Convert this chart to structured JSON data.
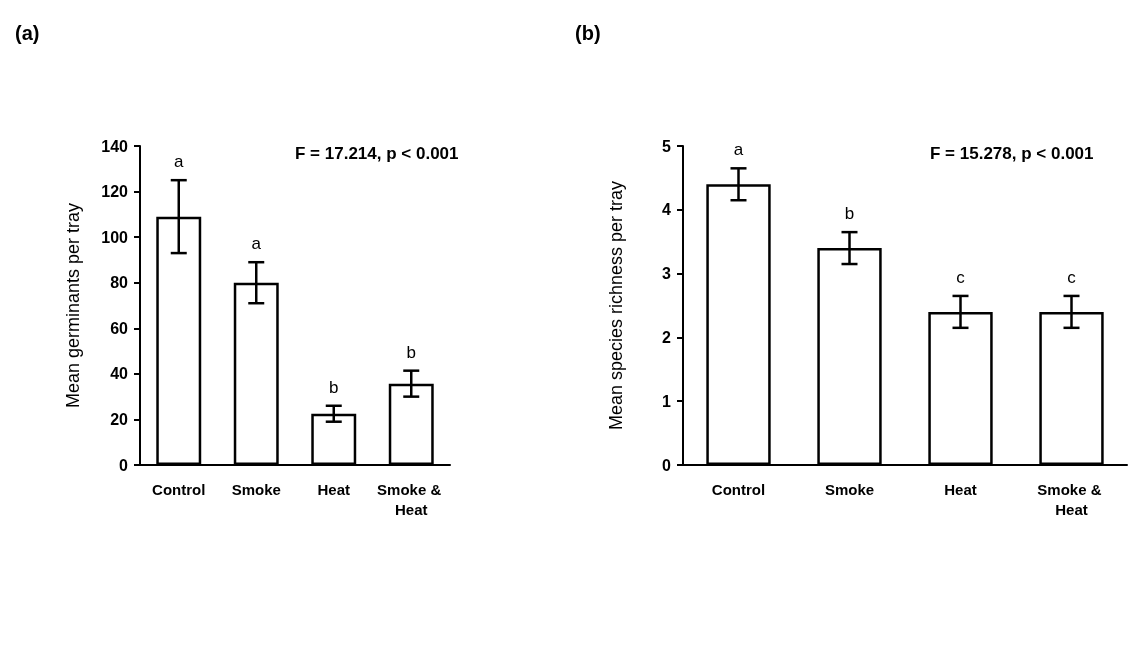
{
  "chart_data": [
    {
      "type": "bar",
      "title": "(a)",
      "ylabel": "Mean germinants per tray",
      "categories": [
        "Control",
        "Smoke",
        "Heat",
        "Smoke & Heat"
      ],
      "values": [
        109,
        80,
        22.5,
        35.7
      ],
      "errors": [
        16,
        9,
        3.5,
        5.7
      ],
      "color": "#ffffff",
      "ylim": [
        0,
        140
      ],
      "yticks": [
        0,
        20,
        40,
        60,
        80,
        100,
        120,
        140
      ],
      "grid": false,
      "annotations": [
        "F = 17.214, p < 0.001",
        {
          "text": "a",
          "x": "Control",
          "y": 125
        },
        {
          "text": "a",
          "x": "Smoke",
          "y": 89
        },
        {
          "text": "b",
          "x": "Heat",
          "y": 26
        },
        {
          "text": "b",
          "x": "Smoke & Heat",
          "y": 41.4
        }
      ]
    },
    {
      "type": "bar",
      "title": "(b)",
      "ylabel": "Mean species richness per tray",
      "categories": [
        "Control",
        "Smoke",
        "Heat",
        "Smoke & Heat"
      ],
      "values": [
        4.4,
        3.4,
        2.4,
        2.4
      ],
      "errors": [
        0.25,
        0.25,
        0.25,
        0.25
      ],
      "color": "#ffffff",
      "ylim": [
        0,
        5
      ],
      "yticks": [
        0,
        1,
        2,
        3,
        4,
        5
      ],
      "grid": false,
      "annotations": [
        "F = 15.278, p < 0.001",
        {
          "text": "a",
          "x": "Control",
          "y": 4.65
        },
        {
          "text": "b",
          "x": "Smoke",
          "y": 3.65
        },
        {
          "text": "c",
          "x": "Heat",
          "y": 2.65
        },
        {
          "text": "c",
          "x": "Smoke & Heat",
          "y": 2.65
        }
      ]
    }
  ]
}
